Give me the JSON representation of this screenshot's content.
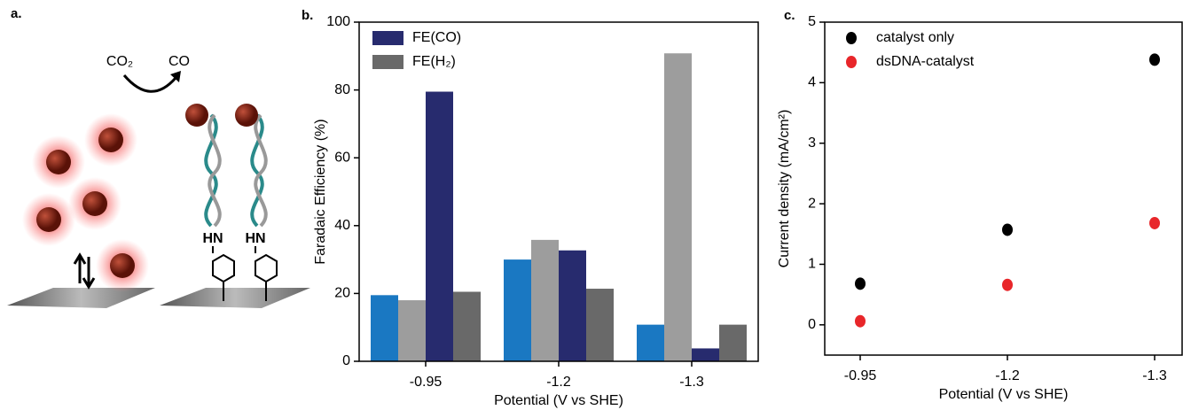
{
  "diagram": {
    "panel_label": "a.",
    "reactant": "CO₂",
    "product": "CO",
    "linker_labels": [
      "HN",
      "HN"
    ]
  },
  "chart_data": [
    {
      "type": "bar",
      "panel_label": "b.",
      "ylabel": "Faradaic Efficiency (%)",
      "xlabel": "Potential (V vs SHE)",
      "categories": [
        "-0.95",
        "-1.2",
        "-1.3"
      ],
      "series": [
        {
          "name": null,
          "color": "#1a78c2",
          "values": [
            19.5,
            30,
            10.8
          ]
        },
        {
          "name": null,
          "color": "#9d9d9d",
          "values": [
            18,
            35.8,
            90.8
          ]
        },
        {
          "name": "FE(CO)",
          "color": "#272b6e",
          "values": [
            79.5,
            32.7,
            3.8
          ]
        },
        {
          "name": "FE(H₂)",
          "color": "#696969",
          "values": [
            20.5,
            21.4,
            10.8
          ]
        }
      ],
      "ylim": [
        0,
        100
      ],
      "yticks": [
        0,
        20,
        40,
        60,
        80,
        100
      ],
      "legend": "upper left"
    },
    {
      "type": "scatter",
      "panel_label": "c.",
      "ylabel": "Current density (mA/cm²)",
      "xlabel": "Potential (V vs SHE)",
      "categories": [
        "-0.95",
        "-1.2",
        "-1.3"
      ],
      "series": [
        {
          "name": "catalyst only",
          "color": "#000000",
          "values": [
            0.68,
            1.57,
            4.38
          ]
        },
        {
          "name": "dsDNA-catalyst",
          "color": "#e8262a",
          "values": [
            0.06,
            0.66,
            1.68
          ]
        }
      ],
      "ylim": [
        -0.5,
        5
      ],
      "yticks": [
        0,
        1,
        2,
        3,
        4,
        5
      ],
      "legend": "upper left"
    }
  ]
}
